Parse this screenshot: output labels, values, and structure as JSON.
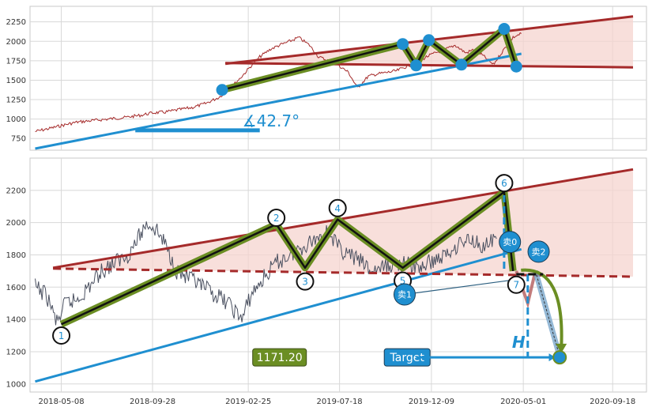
{
  "colors": {
    "trend": "#1f8fd0",
    "channel": "#a52a2a",
    "channel_fill": "#f6d4cf",
    "zigzag_outer": "#6b8e23",
    "zigzag_inner": "#111111",
    "price_top": "#a52a2a",
    "price_bottom": "#4a5060",
    "grid": "#d8d8d8",
    "frame": "#c8c8c8"
  },
  "chart_data": [
    {
      "type": "line",
      "panel": "top",
      "ylim": [
        600,
        2450
      ],
      "yticks": [
        "750",
        "1000",
        "1250",
        "1500",
        "1750",
        "2000",
        "2250"
      ],
      "ytick_values": [
        750,
        1000,
        1250,
        1500,
        1750,
        2000,
        2250
      ],
      "xlim": [
        "2018-03-20",
        "2020-11-10"
      ],
      "grid": true,
      "series": [
        {
          "x": [
            "2018-03-28",
            "2018-04-20",
            "2018-05-10",
            "2018-06-01",
            "2018-06-25",
            "2018-07-20",
            "2018-08-15",
            "2018-09-10",
            "2018-09-28",
            "2018-10-18",
            "2018-11-08",
            "2018-11-30",
            "2018-12-20",
            "2019-01-10",
            "2019-01-28",
            "2019-02-15",
            "2019-03-01",
            "2019-03-15",
            "2019-04-01",
            "2019-04-15",
            "2019-05-01",
            "2019-05-15",
            "2019-06-01",
            "2019-06-15",
            "2019-07-01",
            "2019-07-15",
            "2019-08-01",
            "2019-08-15",
            "2019-09-01",
            "2019-09-15",
            "2019-10-01",
            "2019-10-15",
            "2019-11-01",
            "2019-11-15",
            "2019-12-01",
            "2019-12-15",
            "2020-01-01",
            "2020-01-15",
            "2020-02-01",
            "2020-02-15",
            "2020-03-01",
            "2020-03-15",
            "2020-04-01",
            "2020-04-15",
            "2020-04-28"
          ],
          "y": [
            840,
            880,
            920,
            960,
            980,
            1000,
            1020,
            1050,
            1080,
            1090,
            1120,
            1150,
            1200,
            1280,
            1400,
            1550,
            1680,
            1800,
            1900,
            1950,
            2000,
            2050,
            1950,
            1800,
            1750,
            1700,
            1600,
            1400,
            1550,
            1580,
            1600,
            1620,
            1680,
            1720,
            1800,
            1850,
            1900,
            1950,
            1850,
            1900,
            1800,
            1700,
            1900,
            2050,
            2100
          ]
        }
      ],
      "trend_line": {
        "x": [
          "2018-03-28",
          "2020-04-28"
        ],
        "y": [
          620,
          1840
        ]
      },
      "angle_marker": {
        "x": [
          "2018-09-01",
          "2019-03-15"
        ],
        "y": [
          855,
          855
        ]
      },
      "angle_label": "∡42.7°",
      "channel_upper": {
        "x": [
          "2019-01-20",
          "2020-10-20"
        ],
        "y": [
          1710,
          2320
        ]
      },
      "channel_lower": {
        "x": [
          "2019-01-20",
          "2020-10-20"
        ],
        "y": [
          1720,
          1665
        ]
      },
      "zigzag": {
        "x": [
          "2019-01-15",
          "2019-10-25",
          "2019-11-15",
          "2019-12-05",
          "2020-01-25",
          "2020-04-01",
          "2020-04-20"
        ],
        "y": [
          1375,
          1965,
          1690,
          2015,
          1700,
          2160,
          1675
        ]
      }
    },
    {
      "type": "line",
      "panel": "bottom",
      "ylim": [
        950,
        2400
      ],
      "yticks": [
        "1000",
        "1200",
        "1400",
        "1600",
        "1800",
        "2000",
        "2200"
      ],
      "ytick_values": [
        1000,
        1200,
        1400,
        1600,
        1800,
        2000,
        2200
      ],
      "xlim": [
        "2018-03-20",
        "2020-11-10"
      ],
      "xticks": [
        "2018-05-08",
        "2018-09-28",
        "2019-02-25",
        "2019-07-18",
        "2019-12-09",
        "2020-05-01",
        "2020-09-18"
      ],
      "grid": true,
      "series": [
        {
          "x": [
            "2018-03-28",
            "2018-04-15",
            "2018-05-01",
            "2018-05-15",
            "2018-06-01",
            "2018-06-20",
            "2018-07-10",
            "2018-07-30",
            "2018-08-20",
            "2018-09-05",
            "2018-09-20",
            "2018-10-05",
            "2018-10-20",
            "2018-11-05",
            "2018-11-25",
            "2018-12-15",
            "2019-01-05",
            "2019-01-25",
            "2019-02-15",
            "2019-03-01",
            "2019-03-20",
            "2019-04-10",
            "2019-05-01",
            "2019-05-20",
            "2019-06-10",
            "2019-07-01",
            "2019-07-15",
            "2019-08-01",
            "2019-08-20",
            "2019-09-05",
            "2019-09-25",
            "2019-10-15",
            "2019-11-01",
            "2019-11-20",
            "2019-12-10",
            "2020-01-01",
            "2020-01-20",
            "2020-02-10",
            "2020-03-01",
            "2020-03-20"
          ],
          "y": [
            1600,
            1550,
            1380,
            1500,
            1520,
            1600,
            1700,
            1750,
            1800,
            1900,
            2000,
            1950,
            1850,
            1700,
            1650,
            1600,
            1550,
            1500,
            1400,
            1550,
            1650,
            1750,
            1800,
            1850,
            1900,
            1950,
            1850,
            1800,
            1760,
            1700,
            1720,
            1750,
            1740,
            1720,
            1760,
            1800,
            1870,
            1900,
            1850,
            1900
          ]
        }
      ],
      "trend_line": {
        "x": [
          "2018-03-28",
          "2020-04-28"
        ],
        "y": [
          1015,
          1835
        ]
      },
      "channel_upper": {
        "x": [
          "2018-04-25",
          "2020-10-20"
        ],
        "y": [
          1720,
          2330
        ]
      },
      "channel_lower": {
        "x": [
          "2018-04-25",
          "2020-10-20"
        ],
        "y": [
          1715,
          1665
        ]
      },
      "zigzag": {
        "x": [
          "2018-05-08",
          "2019-04-10",
          "2019-05-25",
          "2019-07-15",
          "2019-10-25",
          "2020-04-01",
          "2020-04-15"
        ],
        "y": [
          1370,
          1990,
          1720,
          2020,
          1720,
          2190,
          1700
        ]
      },
      "points": [
        {
          "label": "1",
          "x": "2018-05-08",
          "y": 1300
        },
        {
          "label": "2",
          "x": "2019-04-10",
          "y": 2030
        },
        {
          "label": "3",
          "x": "2019-05-25",
          "y": 1635
        },
        {
          "label": "4",
          "x": "2019-07-15",
          "y": 2090
        },
        {
          "label": "5",
          "x": "2019-10-25",
          "y": 1640
        },
        {
          "label": "6",
          "x": "2020-04-01",
          "y": 2245
        },
        {
          "label": "7",
          "x": "2020-04-20",
          "y": 1615
        }
      ],
      "sell_points": [
        {
          "label": "卖0",
          "x": "2020-04-10",
          "y": 1880
        },
        {
          "label": "卖1",
          "x": "2019-10-28",
          "y": 1555
        },
        {
          "label": "卖2",
          "x": "2020-05-25",
          "y": 1820
        }
      ],
      "target_value_label": "1171.20",
      "target_label": "Target",
      "target_arrow": {
        "x": [
          "2019-11-15",
          "2020-06-20"
        ],
        "y": [
          1165,
          1165
        ]
      },
      "target_point": {
        "x": "2020-06-27",
        "y": 1165
      },
      "h_label": "H",
      "dashed_line": {
        "x": [
          "2020-05-08",
          "2020-05-08"
        ],
        "y": [
          1680,
          1170
        ]
      },
      "projection_path": {
        "x": [
          "2020-04-20",
          "2020-05-08",
          "2020-05-20",
          "2020-06-27"
        ],
        "y": [
          1700,
          1500,
          1700,
          1170
        ]
      }
    }
  ]
}
